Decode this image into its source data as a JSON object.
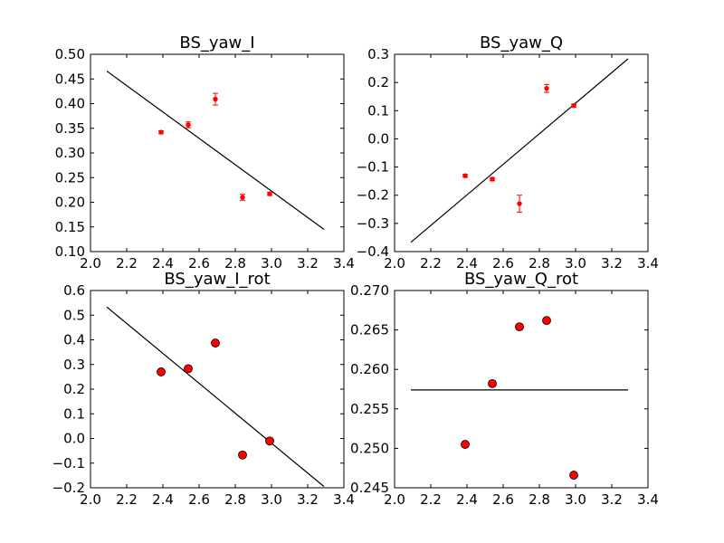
{
  "chart_data": [
    {
      "type": "scatter",
      "title": "BS_yaw_I",
      "xlim": [
        2.0,
        3.4
      ],
      "ylim": [
        0.1,
        0.5
      ],
      "xticks": [
        "2.0",
        "2.2",
        "2.4",
        "2.6",
        "2.8",
        "3.0",
        "3.2",
        "3.4"
      ],
      "yticks": [
        "0.10",
        "0.15",
        "0.20",
        "0.25",
        "0.30",
        "0.35",
        "0.40",
        "0.45",
        "0.50"
      ],
      "marker": "errorbar",
      "color": "#ff0000",
      "points": [
        {
          "x": 2.39,
          "y": 0.342,
          "err": 0.003
        },
        {
          "x": 2.54,
          "y": 0.357,
          "err": 0.006
        },
        {
          "x": 2.69,
          "y": 0.409,
          "err": 0.012
        },
        {
          "x": 2.84,
          "y": 0.21,
          "err": 0.006
        },
        {
          "x": 2.99,
          "y": 0.217,
          "err": 0.003
        }
      ],
      "fit_line": {
        "x": [
          2.09,
          3.29
        ],
        "y": [
          0.466,
          0.145
        ]
      }
    },
    {
      "type": "scatter",
      "title": "BS_yaw_Q",
      "xlim": [
        2.0,
        3.4
      ],
      "ylim": [
        -0.4,
        0.3
      ],
      "xticks": [
        "2.0",
        "2.2",
        "2.4",
        "2.6",
        "2.8",
        "3.0",
        "3.2",
        "3.4"
      ],
      "yticks": [
        "−0.4",
        "−0.3",
        "−0.2",
        "−0.1",
        "0.0",
        "0.1",
        "0.2",
        "0.3"
      ],
      "marker": "errorbar",
      "color": "#ff0000",
      "points": [
        {
          "x": 2.39,
          "y": -0.131,
          "err": 0.005
        },
        {
          "x": 2.54,
          "y": -0.143,
          "err": 0.006
        },
        {
          "x": 2.69,
          "y": -0.23,
          "err": 0.03
        },
        {
          "x": 2.84,
          "y": 0.179,
          "err": 0.014
        },
        {
          "x": 2.99,
          "y": 0.118,
          "err": 0.005
        }
      ],
      "fit_line": {
        "x": [
          2.09,
          3.29
        ],
        "y": [
          -0.367,
          0.284
        ]
      }
    },
    {
      "type": "scatter",
      "title": "BS_yaw_I_rot",
      "xlim": [
        2.0,
        3.4
      ],
      "ylim": [
        -0.2,
        0.6
      ],
      "xticks": [
        "2.0",
        "2.2",
        "2.4",
        "2.6",
        "2.8",
        "3.0",
        "3.2",
        "3.4"
      ],
      "yticks": [
        "−0.2",
        "−0.1",
        "0.0",
        "0.1",
        "0.2",
        "0.3",
        "0.4",
        "0.5",
        "0.6"
      ],
      "marker": "circle",
      "color": "#ff0000",
      "points": [
        {
          "x": 2.39,
          "y": 0.27
        },
        {
          "x": 2.54,
          "y": 0.283
        },
        {
          "x": 2.69,
          "y": 0.387
        },
        {
          "x": 2.84,
          "y": -0.067
        },
        {
          "x": 2.99,
          "y": -0.01
        }
      ],
      "fit_line": {
        "x": [
          2.09,
          3.29
        ],
        "y": [
          0.533,
          -0.195
        ]
      }
    },
    {
      "type": "scatter",
      "title": "BS_yaw_Q_rot",
      "xlim": [
        2.0,
        3.4
      ],
      "ylim": [
        0.245,
        0.27
      ],
      "xticks": [
        "2.0",
        "2.2",
        "2.4",
        "2.6",
        "2.8",
        "3.0",
        "3.2",
        "3.4"
      ],
      "yticks": [
        "0.245",
        "0.250",
        "0.255",
        "0.260",
        "0.265",
        "0.270"
      ],
      "marker": "circle",
      "color": "#ff0000",
      "points": [
        {
          "x": 2.39,
          "y": 0.2505
        },
        {
          "x": 2.54,
          "y": 0.2582
        },
        {
          "x": 2.69,
          "y": 0.2654
        },
        {
          "x": 2.84,
          "y": 0.2662
        },
        {
          "x": 2.99,
          "y": 0.2466
        }
      ],
      "fit_line": {
        "x": [
          2.09,
          3.29
        ],
        "y": [
          0.2574,
          0.2574
        ]
      }
    }
  ]
}
